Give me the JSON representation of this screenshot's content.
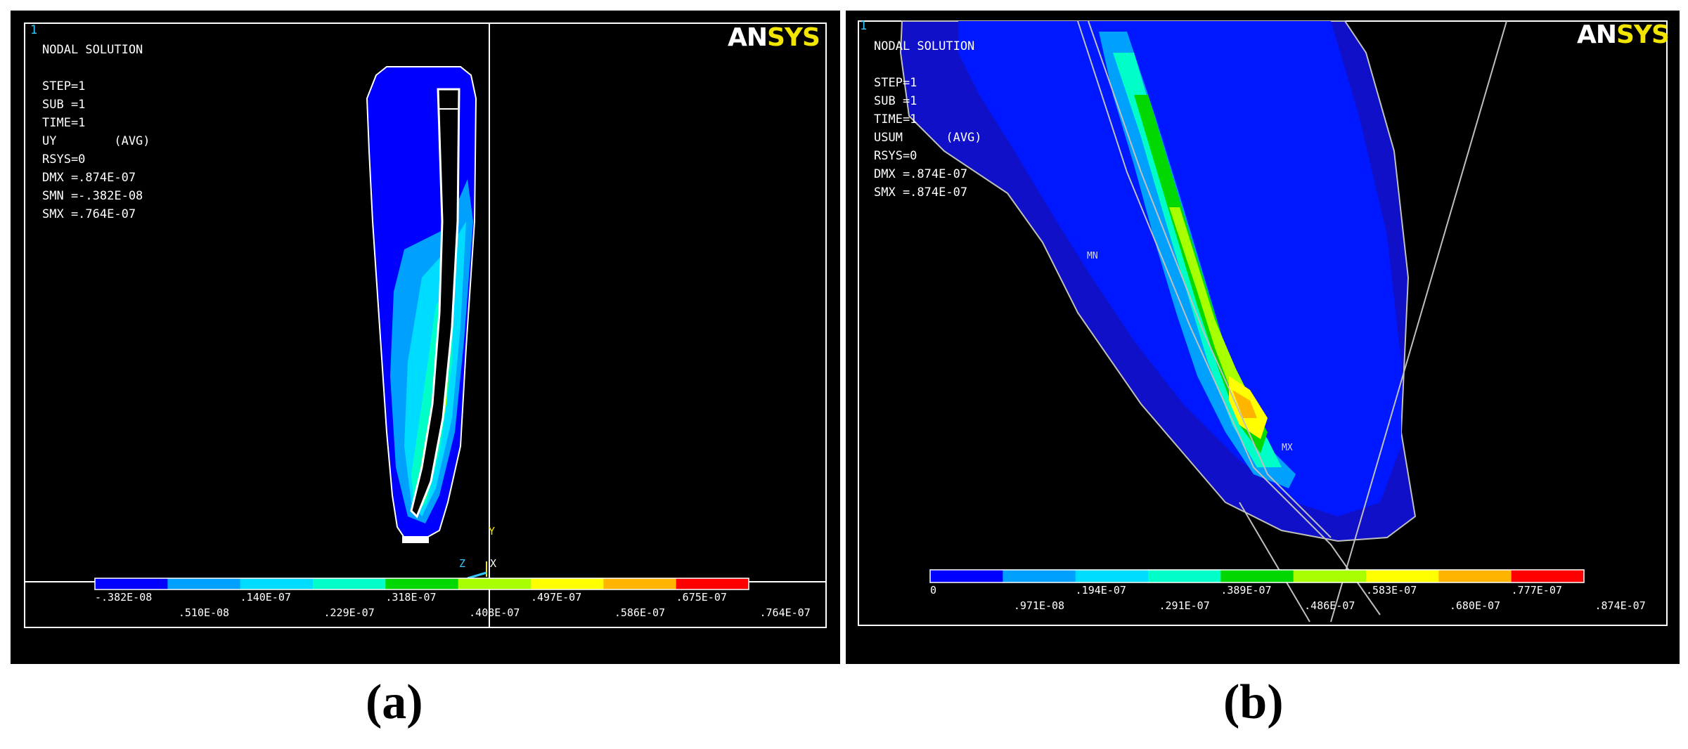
{
  "panel_a": {
    "window_number": "1",
    "logo_an": "AN",
    "logo_sys": "SYS",
    "info_lines": [
      "NODAL SOLUTION",
      "",
      "STEP=1",
      "SUB =1",
      "TIME=1",
      "UY        (AVG)",
      "RSYS=0",
      "DMX =.874E-07",
      "SMN =-.382E-08",
      "SMX =.764E-07"
    ],
    "legend_colors": [
      "#0000ff",
      "#00a0ff",
      "#00dcff",
      "#00ffc8",
      "#00d800",
      "#a8ff00",
      "#ffff00",
      "#ffb400",
      "#ff0000"
    ],
    "legend_top_labels": [
      "-.382E-08",
      ".140E-07",
      ".318E-07",
      ".497E-07",
      ".675E-07"
    ],
    "legend_bottom_labels": [
      ".510E-08",
      ".229E-07",
      ".408E-07",
      ".586E-07",
      ".764E-07"
    ],
    "triad": {
      "y": "Y",
      "z": "Z",
      "x": "X"
    }
  },
  "panel_b": {
    "window_number": "1",
    "logo_an": "AN",
    "logo_sys": "SYS",
    "info_lines": [
      "NODAL SOLUTION",
      "",
      "STEP=1",
      "SUB =1",
      "TIME=1",
      "USUM      (AVG)",
      "RSYS=0",
      "DMX =.874E-07",
      "SMX =.874E-07"
    ],
    "legend_colors": [
      "#0000ff",
      "#00a0ff",
      "#00dcff",
      "#00ffc8",
      "#00d800",
      "#a8ff00",
      "#ffff00",
      "#ffb400",
      "#ff0000"
    ],
    "legend_top_labels": [
      "0",
      ".194E-07",
      ".389E-07",
      ".583E-07",
      ".777E-07"
    ],
    "legend_bottom_labels": [
      ".971E-08",
      ".291E-07",
      ".486E-07",
      ".680E-07",
      ".874E-07"
    ],
    "mn_label": "MN",
    "mx_label": "MX"
  },
  "captions": {
    "a": "(a)",
    "b": "(b)"
  }
}
